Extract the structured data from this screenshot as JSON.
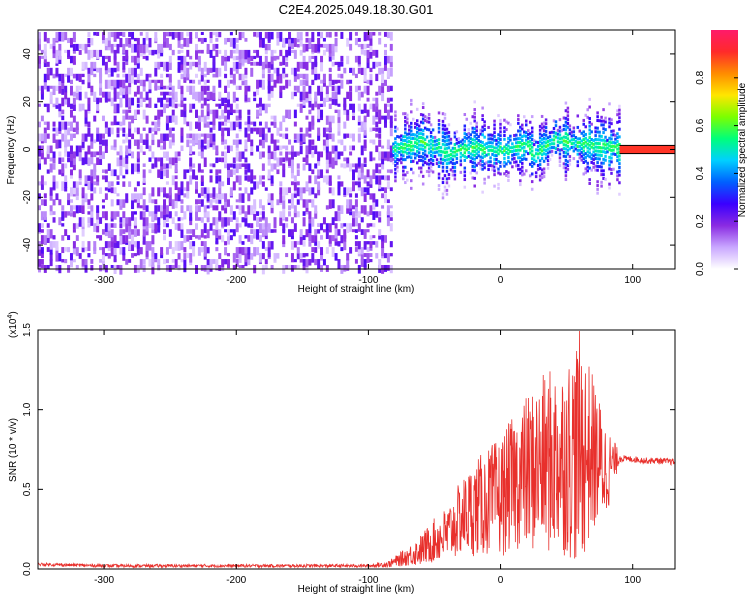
{
  "title": "C2E4.2025.049.18.30.G01",
  "colormap_colors": [
    "#ffffff",
    "#c9a7ff",
    "#8a2be2",
    "#3a00ff",
    "#0060ff",
    "#00d0ff",
    "#00ff7a",
    "#7cff00",
    "#ffe600",
    "#ff8c00",
    "#ff2a2a",
    "#ff1a6a"
  ],
  "line_color": "#e8302c",
  "chart_data": [
    {
      "type": "heatmap",
      "title": "C2E4.2025.049.18.30.G01",
      "xlabel": "Height of straight line (km)",
      "ylabel": "Frequency (Hz)",
      "xlim": [
        -350,
        132
      ],
      "ylim": [
        -50,
        50
      ],
      "xticks": [
        -300,
        -200,
        -100,
        0,
        100
      ],
      "yticks": [
        -40,
        -20,
        0,
        20,
        40
      ],
      "colorbar": {
        "label": "Normalized spectral amplitude",
        "range": [
          0.0,
          1.0
        ],
        "ticks": [
          0.0,
          0.2,
          0.4,
          0.6,
          0.8
        ]
      },
      "regions": [
        {
          "x_range": [
            -350,
            -82
          ],
          "freq_range": [
            -50,
            50
          ],
          "amplitude": [
            0.05,
            0.25
          ],
          "description_key": "noise"
        },
        {
          "x_range": [
            -82,
            90
          ],
          "freq_center": 0,
          "freq_halfwidth": [
            5,
            20
          ],
          "amplitude": [
            0.2,
            0.5
          ]
        },
        {
          "x_range": [
            90,
            132
          ],
          "freq_center": 0,
          "freq_halfwidth": 1.5,
          "amplitude": 0.9
        }
      ],
      "ridge_points": [
        {
          "x": -80,
          "y": 0
        },
        {
          "x": -60,
          "y": 3
        },
        {
          "x": -40,
          "y": -2
        },
        {
          "x": -20,
          "y": 1
        },
        {
          "x": 0,
          "y": -1
        },
        {
          "x": 20,
          "y": 2
        },
        {
          "x": 25,
          "y": -3
        },
        {
          "x": 40,
          "y": 4
        },
        {
          "x": 60,
          "y": 2
        },
        {
          "x": 80,
          "y": 1
        },
        {
          "x": 95,
          "y": 0
        },
        {
          "x": 132,
          "y": 0
        }
      ]
    },
    {
      "type": "line",
      "xlabel": "Height of straight line (km)",
      "ylabel": "SNR (10 * v/v)",
      "yscale_label": "(x10",
      "yscale_exponent": "4",
      "y_multiplier": 10000,
      "xlim": [
        -350,
        132
      ],
      "ylim": [
        0.0,
        1.5
      ],
      "xticks": [
        -300,
        -200,
        -100,
        0,
        100
      ],
      "yticks": [
        0.0,
        0.5,
        1.0,
        1.5
      ],
      "series": [
        {
          "x": [
            -350,
            -300,
            -250,
            -200,
            -150,
            -100,
            -85,
            -70,
            -60,
            -50,
            -40,
            -30,
            -20,
            -10,
            0,
            10,
            20,
            30,
            40,
            50,
            60,
            70,
            80,
            90,
            95,
            100,
            110,
            120,
            132
          ],
          "y": [
            0.03,
            0.02,
            0.02,
            0.02,
            0.02,
            0.02,
            0.03,
            0.08,
            0.12,
            0.18,
            0.22,
            0.32,
            0.38,
            0.42,
            0.45,
            0.55,
            0.6,
            0.65,
            0.68,
            0.7,
            0.75,
            0.72,
            0.62,
            0.7,
            0.69,
            0.69,
            0.68,
            0.68,
            0.67
          ],
          "spread": [
            0.01,
            0.01,
            0.01,
            0.01,
            0.01,
            0.01,
            0.02,
            0.06,
            0.1,
            0.14,
            0.18,
            0.24,
            0.3,
            0.34,
            0.38,
            0.42,
            0.5,
            0.55,
            0.6,
            0.62,
            0.75,
            0.5,
            0.3,
            0.03,
            0.02,
            0.02,
            0.02,
            0.02,
            0.02
          ]
        }
      ]
    }
  ]
}
